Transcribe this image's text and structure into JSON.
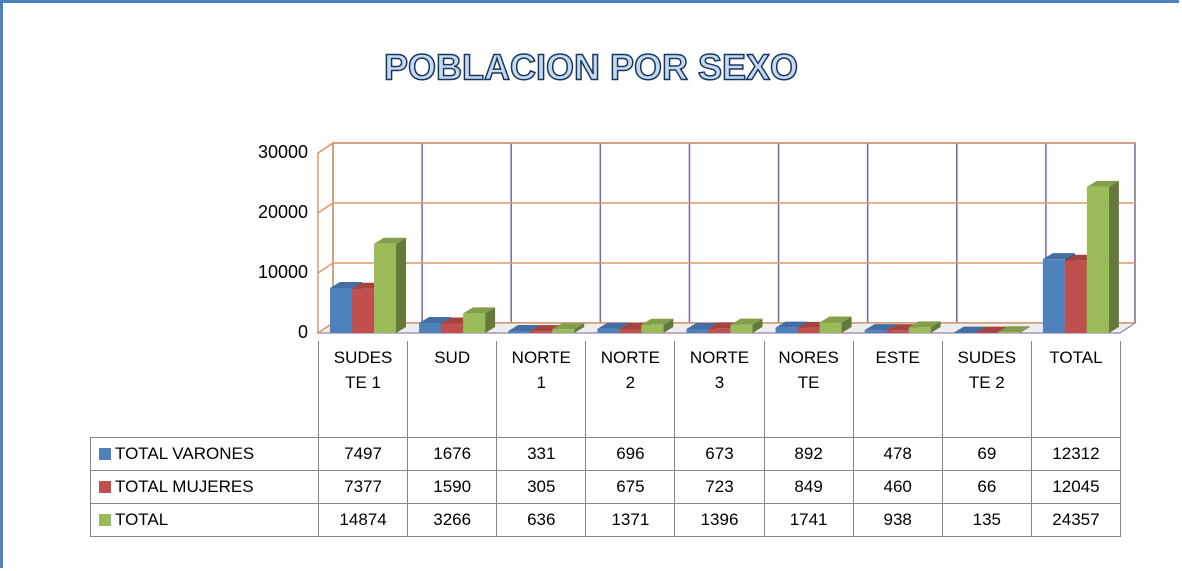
{
  "chart_data": {
    "type": "bar3d",
    "title": "POBLACION POR SEXO",
    "categories": [
      "SUDESTE 1",
      "SUD",
      "NORTE 1",
      "NORTE 2",
      "NORTE 3",
      "NORESTE",
      "ESTE",
      "SUDESTE 2",
      "TOTAL"
    ],
    "series": [
      {
        "name": "TOTAL VARONES",
        "color": "#4f81bd",
        "values": [
          7497,
          1676,
          331,
          696,
          673,
          892,
          478,
          69,
          12312
        ]
      },
      {
        "name": "TOTAL MUJERES",
        "color": "#c0504d",
        "values": [
          7377,
          1590,
          305,
          675,
          723,
          849,
          460,
          66,
          12045
        ]
      },
      {
        "name": "TOTAL",
        "color": "#9bbb59",
        "values": [
          14874,
          3266,
          636,
          1371,
          1396,
          1741,
          938,
          135,
          24357
        ]
      }
    ],
    "ylim": [
      0,
      30000
    ],
    "yticks": [
      0,
      10000,
      20000,
      30000
    ],
    "grid": true
  }
}
